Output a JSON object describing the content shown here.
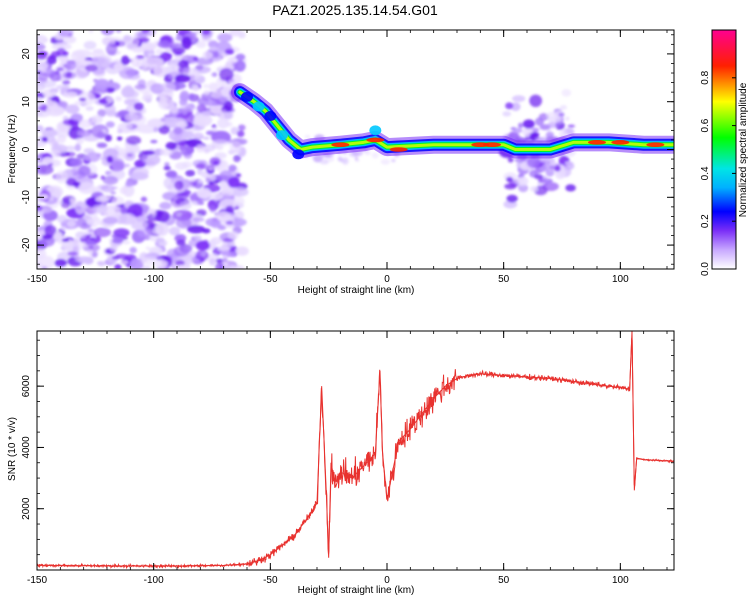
{
  "figure": {
    "title": "PAZ1.2025.135.14.54.G01"
  },
  "chart_data": [
    {
      "type": "heatmap",
      "title": "PAZ1.2025.135.14.54.G01",
      "xlabel": "Height of straight line (km)",
      "ylabel": "Frequency (Hz)",
      "xlim": [
        -150,
        123
      ],
      "ylim": [
        -25,
        25
      ],
      "xticks": [
        -150,
        -100,
        -50,
        0,
        50,
        100
      ],
      "xtick_labels": [
        "-150",
        "-100",
        "-50",
        "0",
        "50",
        "100"
      ],
      "yticks": [
        -20,
        -10,
        0,
        10,
        20
      ],
      "ytick_labels": [
        "-20",
        "-10",
        "0",
        "10",
        "20"
      ],
      "colorbar": {
        "label": "Normalized spectral amplitude",
        "range": [
          0,
          1
        ],
        "ticks": [
          0,
          0.2,
          0.4,
          0.6,
          0.8
        ],
        "tick_labels": [
          "0.0",
          "0.2",
          "0.4",
          "0.6",
          "0.8"
        ],
        "colormap": [
          "#ffffff",
          "#7b2ff7",
          "#0000ff",
          "#00e5ff",
          "#00ff00",
          "#ffff00",
          "#ff0000",
          "#ff00a0"
        ]
      },
      "scatter_region": {
        "x": [
          -150,
          -62
        ],
        "y": [
          -25,
          25
        ]
      },
      "ridge": [
        {
          "x": -63,
          "y": 12
        },
        {
          "x": -57,
          "y": 10
        },
        {
          "x": -52,
          "y": 8
        },
        {
          "x": -47,
          "y": 5
        },
        {
          "x": -42,
          "y": 2
        },
        {
          "x": -37,
          "y": 0
        },
        {
          "x": -32,
          "y": 0.5
        },
        {
          "x": -20,
          "y": 1
        },
        {
          "x": -10,
          "y": 1.5
        },
        {
          "x": -5,
          "y": 2
        },
        {
          "x": 0,
          "y": 0.5
        },
        {
          "x": 20,
          "y": 1
        },
        {
          "x": 40,
          "y": 1
        },
        {
          "x": 50,
          "y": 1
        },
        {
          "x": 55,
          "y": 0
        },
        {
          "x": 70,
          "y": 0
        },
        {
          "x": 80,
          "y": 1.5
        },
        {
          "x": 95,
          "y": 1.5
        },
        {
          "x": 110,
          "y": 1
        },
        {
          "x": 123,
          "y": 1
        }
      ],
      "grid": false
    },
    {
      "type": "line",
      "xlabel": "Height of straight line (km)",
      "ylabel": "SNR (10 * v/v)",
      "xlim": [
        -150,
        123
      ],
      "ylim": [
        0,
        7800
      ],
      "xticks": [
        -150,
        -100,
        -50,
        0,
        50,
        100
      ],
      "xtick_labels": [
        "-150",
        "-100",
        "-50",
        "0",
        "50",
        "100"
      ],
      "yticks": [
        2000,
        4000,
        6000
      ],
      "ytick_labels": [
        "2000",
        "4000",
        "6000"
      ],
      "color": "#e8322f",
      "series": [
        {
          "x": [
            -150,
            -130,
            -110,
            -90,
            -70,
            -60,
            -55,
            -50,
            -45,
            -40,
            -35,
            -32,
            -30,
            -28,
            -26,
            -25,
            -24,
            -22,
            -20,
            -15,
            -10,
            -5,
            -3,
            -2,
            0,
            5,
            10,
            15,
            20,
            25,
            30,
            35,
            40,
            45,
            50,
            60,
            70,
            80,
            90,
            100,
            104,
            105,
            106,
            107,
            110,
            115,
            123
          ],
          "y": [
            150,
            140,
            130,
            130,
            150,
            200,
            300,
            500,
            800,
            1100,
            1600,
            1900,
            2200,
            6000,
            2500,
            400,
            3500,
            2700,
            3200,
            3000,
            3400,
            3800,
            6500,
            3900,
            2300,
            4200,
            4600,
            5100,
            5600,
            6000,
            6250,
            6350,
            6400,
            6380,
            6350,
            6300,
            6250,
            6150,
            6050,
            5950,
            5900,
            7800,
            2600,
            3650,
            3600,
            3580,
            3550
          ]
        }
      ],
      "grid": false
    }
  ]
}
